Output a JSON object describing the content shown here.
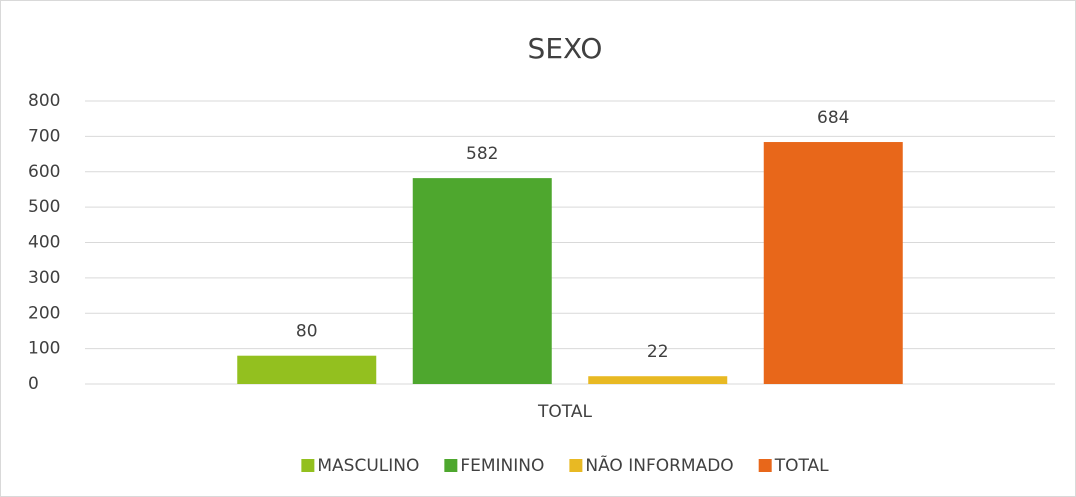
{
  "chart_data": {
    "type": "bar",
    "title": "SEXO",
    "categories": [
      "TOTAL"
    ],
    "series": [
      {
        "name": "MASCULINO",
        "color": "#93c01f",
        "values": [
          80
        ]
      },
      {
        "name": "FEMININO",
        "color": "#4ea72e",
        "values": [
          582
        ]
      },
      {
        "name": "NÃO INFORMADO",
        "color": "#e8b923",
        "values": [
          22
        ]
      },
      {
        "name": "TOTAL",
        "color": "#e8671a",
        "values": [
          684
        ]
      }
    ],
    "ylim": [
      0,
      800
    ],
    "yticks": [
      0,
      100,
      200,
      300,
      400,
      500,
      600,
      700,
      800
    ],
    "grid": true,
    "data_labels": true,
    "legend": "bottom"
  }
}
